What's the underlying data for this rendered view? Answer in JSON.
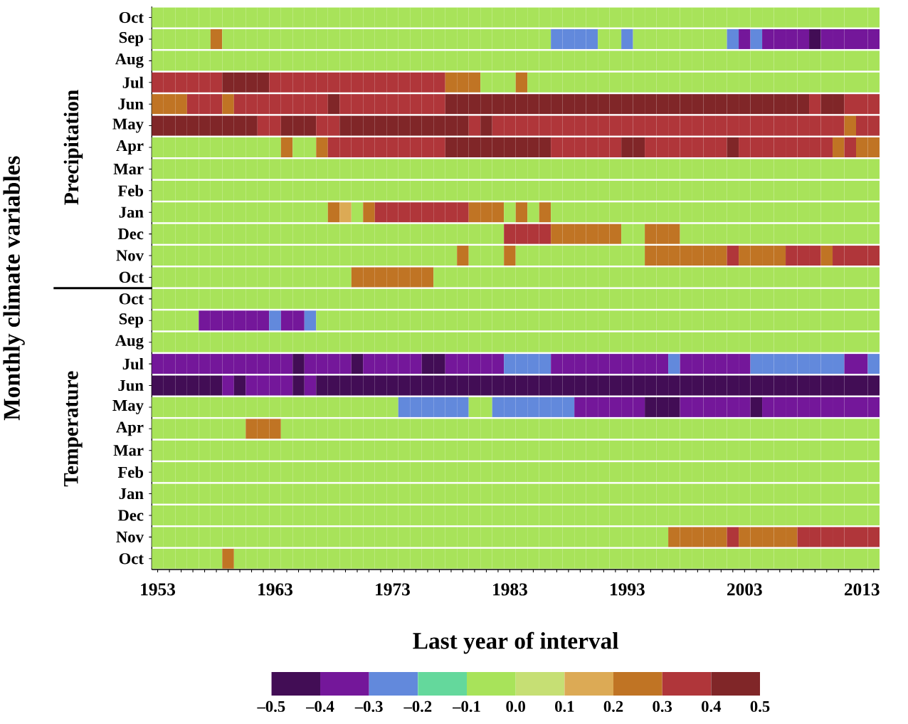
{
  "chart_data": {
    "type": "heatmap",
    "xlabel": "Last year of interval",
    "ylabel": "Monthly climate variables",
    "annotations": [
      "Precipitation",
      "Temperature"
    ],
    "categories": [
      "1953",
      null,
      null,
      null,
      null,
      null,
      null,
      null,
      null,
      null,
      "1963",
      null,
      null,
      null,
      null,
      null,
      null,
      null,
      null,
      null,
      "1973",
      null,
      null,
      null,
      null,
      null,
      null,
      null,
      null,
      null,
      "1983",
      null,
      null,
      null,
      null,
      null,
      null,
      null,
      null,
      null,
      "1993",
      null,
      null,
      null,
      null,
      null,
      null,
      null,
      null,
      null,
      "2003",
      null,
      null,
      null,
      null,
      null,
      null,
      null,
      null,
      null,
      "2013",
      null
    ],
    "y_categories": [
      "Oct",
      "Sep",
      "Aug",
      "Jul",
      "Jun",
      "May",
      "Apr",
      "Mar",
      "Feb",
      "Jan",
      "Dec",
      "Nov",
      "Oct",
      "Oct",
      "Sep",
      "Aug",
      "Jul",
      "Jun",
      "May",
      "Apr",
      "Mar",
      "Feb",
      "Jan",
      "Dec",
      "Nov",
      "Oct"
    ],
    "clim": [
      -0.5,
      0.5
    ],
    "cticks": [
      {
        "value": -0.5,
        "label": "–0.5"
      },
      {
        "value": -0.4,
        "label": "–0.4"
      },
      {
        "value": -0.3,
        "label": "–0.3"
      },
      {
        "value": -0.2,
        "label": "–0.2"
      },
      {
        "value": -0.1,
        "label": "–0.1"
      },
      {
        "value": 0,
        "label": "0.0"
      },
      0.1,
      0.2,
      0.3,
      0.4,
      0.5
    ],
    "cells": [
      [
        -0.05,
        -0.05,
        -0.05,
        -0.05,
        -0.05,
        -0.05,
        -0.05,
        -0.05,
        -0.05,
        -0.05,
        -0.05,
        -0.05,
        -0.05,
        -0.05,
        -0.05,
        -0.05,
        -0.05,
        -0.05,
        -0.05,
        -0.05,
        -0.05,
        -0.05,
        -0.05,
        -0.05,
        -0.05,
        -0.05,
        -0.05,
        -0.05,
        -0.05,
        -0.05,
        -0.05,
        -0.05,
        -0.05,
        -0.05,
        -0.05,
        -0.05,
        -0.05,
        -0.05,
        -0.05,
        -0.05,
        -0.05,
        -0.05,
        -0.05,
        -0.05,
        -0.05,
        -0.05,
        -0.05,
        -0.05,
        -0.05,
        -0.05,
        -0.05,
        -0.05,
        -0.05,
        -0.05,
        -0.05,
        -0.05,
        -0.05,
        -0.05,
        -0.05,
        -0.05,
        -0.05,
        -0.05
      ],
      [
        -0.05,
        -0.05,
        -0.05,
        -0.05,
        -0.05,
        0.25,
        -0.05,
        -0.05,
        -0.05,
        -0.05,
        -0.05,
        -0.05,
        -0.05,
        -0.05,
        -0.05,
        -0.05,
        -0.05,
        -0.05,
        -0.05,
        -0.05,
        -0.05,
        -0.05,
        -0.05,
        -0.05,
        -0.05,
        -0.05,
        -0.05,
        -0.05,
        -0.05,
        -0.05,
        -0.05,
        -0.05,
        -0.05,
        -0.05,
        -0.25,
        -0.25,
        -0.25,
        -0.25,
        -0.05,
        -0.05,
        -0.25,
        -0.05,
        -0.05,
        -0.05,
        -0.05,
        -0.05,
        -0.05,
        -0.05,
        -0.05,
        -0.25,
        -0.35,
        -0.25,
        -0.35,
        -0.35,
        -0.35,
        -0.35,
        -0.45,
        -0.35,
        -0.35,
        -0.35,
        -0.35,
        -0.35
      ],
      [
        -0.05,
        -0.05,
        -0.05,
        -0.05,
        -0.05,
        -0.05,
        -0.05,
        -0.05,
        -0.05,
        -0.05,
        -0.05,
        -0.05,
        -0.05,
        -0.05,
        -0.05,
        -0.05,
        -0.05,
        -0.05,
        -0.05,
        -0.05,
        -0.05,
        -0.05,
        -0.05,
        -0.05,
        -0.05,
        -0.05,
        -0.05,
        -0.05,
        -0.05,
        -0.05,
        -0.05,
        -0.05,
        -0.05,
        -0.05,
        -0.05,
        -0.05,
        -0.05,
        -0.05,
        -0.05,
        -0.05,
        -0.05,
        -0.05,
        -0.05,
        -0.05,
        -0.05,
        -0.05,
        -0.05,
        -0.05,
        -0.05,
        -0.05,
        -0.05,
        -0.05,
        -0.05,
        -0.05,
        -0.05,
        -0.05,
        -0.05,
        -0.05,
        -0.05,
        -0.05,
        -0.05,
        -0.05
      ],
      [
        0.35,
        0.35,
        0.35,
        0.35,
        0.35,
        0.35,
        0.45,
        0.45,
        0.45,
        0.45,
        0.35,
        0.35,
        0.35,
        0.35,
        0.35,
        0.35,
        0.35,
        0.35,
        0.35,
        0.35,
        0.35,
        0.35,
        0.35,
        0.35,
        0.35,
        0.25,
        0.25,
        0.25,
        -0.05,
        -0.05,
        -0.05,
        0.25,
        -0.05,
        -0.05,
        -0.05,
        -0.05,
        -0.05,
        -0.05,
        -0.05,
        -0.05,
        -0.05,
        -0.05,
        -0.05,
        -0.05,
        -0.05,
        -0.05,
        -0.05,
        -0.05,
        -0.05,
        -0.05,
        -0.05,
        -0.05,
        -0.05,
        -0.05,
        -0.05,
        -0.05,
        -0.05,
        -0.05,
        -0.05,
        -0.05,
        -0.05,
        -0.05
      ],
      [
        0.25,
        0.25,
        0.25,
        0.35,
        0.35,
        0.35,
        0.25,
        0.35,
        0.35,
        0.35,
        0.35,
        0.35,
        0.35,
        0.35,
        0.35,
        0.45,
        0.35,
        0.35,
        0.35,
        0.35,
        0.35,
        0.35,
        0.35,
        0.35,
        0.35,
        0.45,
        0.45,
        0.45,
        0.45,
        0.45,
        0.45,
        0.45,
        0.45,
        0.45,
        0.45,
        0.45,
        0.45,
        0.45,
        0.45,
        0.45,
        0.45,
        0.45,
        0.45,
        0.45,
        0.45,
        0.45,
        0.45,
        0.45,
        0.45,
        0.45,
        0.45,
        0.45,
        0.45,
        0.45,
        0.45,
        0.45,
        0.35,
        0.45,
        0.45,
        0.35,
        0.35,
        0.35
      ],
      [
        0.45,
        0.45,
        0.45,
        0.45,
        0.45,
        0.45,
        0.45,
        0.45,
        0.45,
        0.35,
        0.35,
        0.45,
        0.45,
        0.45,
        0.35,
        0.35,
        0.45,
        0.45,
        0.45,
        0.45,
        0.45,
        0.45,
        0.45,
        0.45,
        0.45,
        0.45,
        0.45,
        0.35,
        0.45,
        0.35,
        0.35,
        0.35,
        0.35,
        0.35,
        0.35,
        0.35,
        0.35,
        0.35,
        0.35,
        0.35,
        0.35,
        0.35,
        0.35,
        0.35,
        0.35,
        0.35,
        0.35,
        0.35,
        0.35,
        0.35,
        0.35,
        0.35,
        0.35,
        0.35,
        0.35,
        0.35,
        0.35,
        0.35,
        0.35,
        0.25,
        0.35,
        0.35
      ],
      [
        -0.05,
        -0.05,
        -0.05,
        -0.05,
        -0.05,
        -0.05,
        -0.05,
        -0.05,
        -0.05,
        -0.05,
        -0.05,
        0.25,
        -0.05,
        -0.05,
        0.25,
        0.35,
        0.35,
        0.35,
        0.35,
        0.35,
        0.35,
        0.35,
        0.35,
        0.35,
        0.35,
        0.45,
        0.45,
        0.45,
        0.45,
        0.45,
        0.45,
        0.45,
        0.45,
        0.45,
        0.35,
        0.35,
        0.35,
        0.35,
        0.35,
        0.35,
        0.45,
        0.45,
        0.35,
        0.35,
        0.35,
        0.35,
        0.35,
        0.35,
        0.35,
        0.45,
        0.35,
        0.35,
        0.35,
        0.35,
        0.35,
        0.35,
        0.35,
        0.35,
        0.25,
        0.35,
        0.25,
        0.25
      ],
      [
        -0.05,
        -0.05,
        -0.05,
        -0.05,
        -0.05,
        -0.05,
        -0.05,
        -0.05,
        -0.05,
        -0.05,
        -0.05,
        -0.05,
        -0.05,
        -0.05,
        -0.05,
        -0.05,
        -0.05,
        -0.05,
        -0.05,
        -0.05,
        -0.05,
        -0.05,
        -0.05,
        -0.05,
        -0.05,
        -0.05,
        -0.05,
        -0.05,
        -0.05,
        -0.05,
        -0.05,
        -0.05,
        -0.05,
        -0.05,
        -0.05,
        -0.05,
        -0.05,
        -0.05,
        -0.05,
        -0.05,
        -0.05,
        -0.05,
        -0.05,
        -0.05,
        -0.05,
        -0.05,
        -0.05,
        -0.05,
        -0.05,
        -0.05,
        -0.05,
        -0.05,
        -0.05,
        -0.05,
        -0.05,
        -0.05,
        -0.05,
        -0.05,
        -0.05,
        -0.05,
        -0.05,
        -0.05
      ],
      [
        -0.05,
        -0.05,
        -0.05,
        -0.05,
        -0.05,
        -0.05,
        -0.05,
        -0.05,
        -0.05,
        -0.05,
        -0.05,
        -0.05,
        -0.05,
        -0.05,
        -0.05,
        -0.05,
        -0.05,
        -0.05,
        -0.05,
        -0.05,
        -0.05,
        -0.05,
        -0.05,
        -0.05,
        -0.05,
        -0.05,
        -0.05,
        -0.05,
        -0.05,
        -0.05,
        -0.05,
        -0.05,
        -0.05,
        -0.05,
        -0.05,
        -0.05,
        -0.05,
        -0.05,
        -0.05,
        -0.05,
        -0.05,
        -0.05,
        -0.05,
        -0.05,
        -0.05,
        -0.05,
        -0.05,
        -0.05,
        -0.05,
        -0.05,
        -0.05,
        -0.05,
        -0.05,
        -0.05,
        -0.05,
        -0.05,
        -0.05,
        -0.05,
        -0.05,
        -0.05,
        -0.05,
        -0.05
      ],
      [
        -0.05,
        -0.05,
        -0.05,
        -0.05,
        -0.05,
        -0.05,
        -0.05,
        -0.05,
        -0.05,
        -0.05,
        -0.05,
        -0.05,
        -0.05,
        -0.05,
        -0.05,
        0.25,
        0.15,
        -0.05,
        0.25,
        0.35,
        0.35,
        0.35,
        0.35,
        0.35,
        0.35,
        0.35,
        0.35,
        0.25,
        0.25,
        0.25,
        -0.05,
        0.25,
        -0.05,
        0.25,
        -0.05,
        -0.05,
        -0.05,
        -0.05,
        -0.05,
        -0.05,
        -0.05,
        -0.05,
        -0.05,
        -0.05,
        -0.05,
        -0.05,
        -0.05,
        -0.05,
        -0.05,
        -0.05,
        -0.05,
        -0.05,
        -0.05,
        -0.05,
        -0.05,
        -0.05,
        -0.05,
        -0.05,
        -0.05,
        -0.05,
        -0.05,
        -0.05
      ],
      [
        -0.05,
        -0.05,
        -0.05,
        -0.05,
        -0.05,
        -0.05,
        -0.05,
        -0.05,
        -0.05,
        -0.05,
        -0.05,
        -0.05,
        -0.05,
        -0.05,
        -0.05,
        -0.05,
        -0.05,
        -0.05,
        -0.05,
        -0.05,
        -0.05,
        -0.05,
        -0.05,
        -0.05,
        -0.05,
        -0.05,
        -0.05,
        -0.05,
        -0.05,
        -0.05,
        0.35,
        0.35,
        0.35,
        0.35,
        0.25,
        0.25,
        0.25,
        0.25,
        0.25,
        0.25,
        -0.05,
        -0.05,
        0.25,
        0.25,
        0.25,
        -0.05,
        -0.05,
        -0.05,
        -0.05,
        -0.05,
        -0.05,
        -0.05,
        -0.05,
        -0.05,
        -0.05,
        -0.05,
        -0.05,
        -0.05,
        -0.05,
        -0.05,
        -0.05,
        -0.05
      ],
      [
        -0.05,
        -0.05,
        -0.05,
        -0.05,
        -0.05,
        -0.05,
        -0.05,
        -0.05,
        -0.05,
        -0.05,
        -0.05,
        -0.05,
        -0.05,
        -0.05,
        -0.05,
        -0.05,
        -0.05,
        -0.05,
        -0.05,
        -0.05,
        -0.05,
        -0.05,
        -0.05,
        -0.05,
        -0.05,
        -0.05,
        0.25,
        -0.05,
        -0.05,
        -0.05,
        0.25,
        -0.05,
        -0.05,
        -0.05,
        -0.05,
        -0.05,
        -0.05,
        -0.05,
        -0.05,
        -0.05,
        -0.05,
        -0.05,
        0.25,
        0.25,
        0.25,
        0.25,
        0.25,
        0.25,
        0.25,
        0.35,
        0.25,
        0.25,
        0.25,
        0.25,
        0.35,
        0.35,
        0.35,
        0.25,
        0.35,
        0.35,
        0.35,
        0.35
      ],
      [
        -0.05,
        -0.05,
        -0.05,
        -0.05,
        -0.05,
        -0.05,
        -0.05,
        -0.05,
        -0.05,
        -0.05,
        -0.05,
        -0.05,
        -0.05,
        -0.05,
        -0.05,
        -0.05,
        -0.05,
        0.25,
        0.25,
        0.25,
        0.25,
        0.25,
        0.25,
        0.25,
        -0.05,
        -0.05,
        -0.05,
        -0.05,
        -0.05,
        -0.05,
        -0.05,
        -0.05,
        -0.05,
        -0.05,
        -0.05,
        -0.05,
        -0.05,
        -0.05,
        -0.05,
        -0.05,
        -0.05,
        -0.05,
        -0.05,
        -0.05,
        -0.05,
        -0.05,
        -0.05,
        -0.05,
        -0.05,
        -0.05,
        -0.05,
        -0.05,
        -0.05,
        -0.05,
        -0.05,
        -0.05,
        -0.05,
        -0.05,
        -0.05,
        -0.05,
        -0.05,
        -0.05
      ],
      [
        -0.05,
        -0.05,
        -0.05,
        -0.05,
        -0.05,
        -0.05,
        -0.05,
        -0.05,
        -0.05,
        -0.05,
        -0.05,
        -0.05,
        -0.05,
        -0.05,
        -0.05,
        -0.05,
        -0.05,
        -0.05,
        -0.05,
        -0.05,
        -0.05,
        -0.05,
        -0.05,
        -0.05,
        -0.05,
        -0.05,
        -0.05,
        -0.05,
        -0.05,
        -0.05,
        -0.05,
        -0.05,
        -0.05,
        -0.05,
        -0.05,
        -0.05,
        -0.05,
        -0.05,
        -0.05,
        -0.05,
        -0.05,
        -0.05,
        -0.05,
        -0.05,
        -0.05,
        -0.05,
        -0.05,
        -0.05,
        -0.05,
        -0.05,
        -0.05,
        -0.05,
        -0.05,
        -0.05,
        -0.05,
        -0.05,
        -0.05,
        -0.05,
        -0.05,
        -0.05,
        -0.05,
        -0.05
      ],
      [
        -0.05,
        -0.05,
        -0.05,
        -0.05,
        -0.35,
        -0.35,
        -0.35,
        -0.35,
        -0.35,
        -0.35,
        -0.25,
        -0.35,
        -0.35,
        -0.25,
        -0.05,
        -0.05,
        -0.05,
        -0.05,
        -0.05,
        -0.05,
        -0.05,
        -0.05,
        -0.05,
        -0.05,
        -0.05,
        -0.05,
        -0.05,
        -0.05,
        -0.05,
        -0.05,
        -0.05,
        -0.05,
        -0.05,
        -0.05,
        -0.05,
        -0.05,
        -0.05,
        -0.05,
        -0.05,
        -0.05,
        -0.05,
        -0.05,
        -0.05,
        -0.05,
        -0.05,
        -0.05,
        -0.05,
        -0.05,
        -0.05,
        -0.05,
        -0.05,
        -0.05,
        -0.05,
        -0.05,
        -0.05,
        -0.05,
        -0.05,
        -0.05,
        -0.05,
        -0.05,
        -0.05,
        -0.05
      ],
      [
        -0.05,
        -0.05,
        -0.05,
        -0.05,
        -0.05,
        -0.05,
        -0.05,
        -0.05,
        -0.05,
        -0.05,
        -0.05,
        -0.05,
        -0.05,
        -0.05,
        -0.05,
        -0.05,
        -0.05,
        -0.05,
        -0.05,
        -0.05,
        -0.05,
        -0.05,
        -0.05,
        -0.05,
        -0.05,
        -0.05,
        -0.05,
        -0.05,
        -0.05,
        -0.05,
        -0.05,
        -0.05,
        -0.05,
        -0.05,
        -0.05,
        -0.05,
        -0.05,
        -0.05,
        -0.05,
        -0.05,
        -0.05,
        -0.05,
        -0.05,
        -0.05,
        -0.05,
        -0.05,
        -0.05,
        -0.05,
        -0.05,
        -0.05,
        -0.05,
        -0.05,
        -0.05,
        -0.05,
        -0.05,
        -0.05,
        -0.05,
        -0.05,
        -0.05,
        -0.05,
        -0.05,
        -0.05
      ],
      [
        -0.35,
        -0.35,
        -0.35,
        -0.35,
        -0.35,
        -0.35,
        -0.35,
        -0.35,
        -0.35,
        -0.35,
        -0.35,
        -0.35,
        -0.45,
        -0.35,
        -0.35,
        -0.35,
        -0.35,
        -0.45,
        -0.35,
        -0.35,
        -0.35,
        -0.35,
        -0.35,
        -0.45,
        -0.45,
        -0.35,
        -0.35,
        -0.35,
        -0.35,
        -0.35,
        -0.25,
        -0.25,
        -0.25,
        -0.25,
        -0.35,
        -0.35,
        -0.35,
        -0.35,
        -0.35,
        -0.35,
        -0.35,
        -0.35,
        -0.35,
        -0.35,
        -0.25,
        -0.35,
        -0.35,
        -0.35,
        -0.35,
        -0.35,
        -0.35,
        -0.25,
        -0.25,
        -0.25,
        -0.25,
        -0.25,
        -0.25,
        -0.25,
        -0.25,
        -0.35,
        -0.35,
        -0.25
      ],
      [
        -0.45,
        -0.45,
        -0.45,
        -0.45,
        -0.45,
        -0.45,
        -0.35,
        -0.45,
        -0.35,
        -0.35,
        -0.35,
        -0.35,
        -0.45,
        -0.35,
        -0.45,
        -0.45,
        -0.45,
        -0.45,
        -0.45,
        -0.45,
        -0.45,
        -0.45,
        -0.45,
        -0.45,
        -0.45,
        -0.45,
        -0.45,
        -0.45,
        -0.45,
        -0.45,
        -0.45,
        -0.45,
        -0.45,
        -0.45,
        -0.45,
        -0.45,
        -0.45,
        -0.45,
        -0.45,
        -0.45,
        -0.45,
        -0.45,
        -0.45,
        -0.45,
        -0.45,
        -0.45,
        -0.45,
        -0.45,
        -0.45,
        -0.45,
        -0.45,
        -0.45,
        -0.45,
        -0.45,
        -0.45,
        -0.45,
        -0.45,
        -0.45,
        -0.45,
        -0.45,
        -0.45,
        -0.45
      ],
      [
        -0.05,
        -0.05,
        -0.05,
        -0.05,
        -0.05,
        -0.05,
        -0.05,
        -0.05,
        -0.05,
        -0.05,
        -0.05,
        -0.05,
        -0.05,
        -0.05,
        -0.05,
        -0.05,
        -0.05,
        -0.05,
        -0.05,
        -0.05,
        -0.05,
        -0.25,
        -0.25,
        -0.25,
        -0.25,
        -0.25,
        -0.25,
        -0.05,
        -0.05,
        -0.25,
        -0.25,
        -0.25,
        -0.25,
        -0.25,
        -0.25,
        -0.25,
        -0.35,
        -0.35,
        -0.35,
        -0.35,
        -0.35,
        -0.35,
        -0.45,
        -0.45,
        -0.45,
        -0.35,
        -0.35,
        -0.35,
        -0.35,
        -0.35,
        -0.35,
        -0.45,
        -0.35,
        -0.35,
        -0.35,
        -0.35,
        -0.35,
        -0.35,
        -0.35,
        -0.35,
        -0.35,
        -0.35
      ],
      [
        -0.05,
        -0.05,
        -0.05,
        -0.05,
        -0.05,
        -0.05,
        -0.05,
        -0.05,
        0.25,
        0.25,
        0.25,
        -0.05,
        -0.05,
        -0.05,
        -0.05,
        -0.05,
        -0.05,
        -0.05,
        -0.05,
        -0.05,
        -0.05,
        -0.05,
        -0.05,
        -0.05,
        -0.05,
        -0.05,
        -0.05,
        -0.05,
        -0.05,
        -0.05,
        -0.05,
        -0.05,
        -0.05,
        -0.05,
        -0.05,
        -0.05,
        -0.05,
        -0.05,
        -0.05,
        -0.05,
        -0.05,
        -0.05,
        -0.05,
        -0.05,
        -0.05,
        -0.05,
        -0.05,
        -0.05,
        -0.05,
        -0.05,
        -0.05,
        -0.05,
        -0.05,
        -0.05,
        -0.05,
        -0.05,
        -0.05,
        -0.05,
        -0.05,
        -0.05,
        -0.05,
        -0.05
      ],
      [
        -0.05,
        -0.05,
        -0.05,
        -0.05,
        -0.05,
        -0.05,
        -0.05,
        -0.05,
        -0.05,
        -0.05,
        -0.05,
        -0.05,
        -0.05,
        -0.05,
        -0.05,
        -0.05,
        -0.05,
        -0.05,
        -0.05,
        -0.05,
        -0.05,
        -0.05,
        -0.05,
        -0.05,
        -0.05,
        -0.05,
        -0.05,
        -0.05,
        -0.05,
        -0.05,
        -0.05,
        -0.05,
        -0.05,
        -0.05,
        -0.05,
        -0.05,
        -0.05,
        -0.05,
        -0.05,
        -0.05,
        -0.05,
        -0.05,
        -0.05,
        -0.05,
        -0.05,
        -0.05,
        -0.05,
        -0.05,
        -0.05,
        -0.05,
        -0.05,
        -0.05,
        -0.05,
        -0.05,
        -0.05,
        -0.05,
        -0.05,
        -0.05,
        -0.05,
        -0.05,
        -0.05,
        -0.05
      ],
      [
        -0.05,
        -0.05,
        -0.05,
        -0.05,
        -0.05,
        -0.05,
        -0.05,
        -0.05,
        -0.05,
        -0.05,
        -0.05,
        -0.05,
        -0.05,
        -0.05,
        -0.05,
        -0.05,
        -0.05,
        -0.05,
        -0.05,
        -0.05,
        -0.05,
        -0.05,
        -0.05,
        -0.05,
        -0.05,
        -0.05,
        -0.05,
        -0.05,
        -0.05,
        -0.05,
        -0.05,
        -0.05,
        -0.05,
        -0.05,
        -0.05,
        -0.05,
        -0.05,
        -0.05,
        -0.05,
        -0.05,
        -0.05,
        -0.05,
        -0.05,
        -0.05,
        -0.05,
        -0.05,
        -0.05,
        -0.05,
        -0.05,
        -0.05,
        -0.05,
        -0.05,
        -0.05,
        -0.05,
        -0.05,
        -0.05,
        -0.05,
        -0.05,
        -0.05,
        -0.05,
        -0.05,
        -0.05
      ],
      [
        -0.05,
        -0.05,
        -0.05,
        -0.05,
        -0.05,
        -0.05,
        -0.05,
        -0.05,
        -0.05,
        -0.05,
        -0.05,
        -0.05,
        -0.05,
        -0.05,
        -0.05,
        -0.05,
        -0.05,
        -0.05,
        -0.05,
        -0.05,
        -0.05,
        -0.05,
        -0.05,
        -0.05,
        -0.05,
        -0.05,
        -0.05,
        -0.05,
        -0.05,
        -0.05,
        -0.05,
        -0.05,
        -0.05,
        -0.05,
        -0.05,
        -0.05,
        -0.05,
        -0.05,
        -0.05,
        -0.05,
        -0.05,
        -0.05,
        -0.05,
        -0.05,
        -0.05,
        -0.05,
        -0.05,
        -0.05,
        -0.05,
        -0.05,
        -0.05,
        -0.05,
        -0.05,
        -0.05,
        -0.05,
        -0.05,
        -0.05,
        -0.05,
        -0.05,
        -0.05,
        -0.05,
        -0.05
      ],
      [
        -0.05,
        -0.05,
        -0.05,
        -0.05,
        -0.05,
        -0.05,
        -0.05,
        -0.05,
        -0.05,
        -0.05,
        -0.05,
        -0.05,
        -0.05,
        -0.05,
        -0.05,
        -0.05,
        -0.05,
        -0.05,
        -0.05,
        -0.05,
        -0.05,
        -0.05,
        -0.05,
        -0.05,
        -0.05,
        -0.05,
        -0.05,
        -0.05,
        -0.05,
        -0.05,
        -0.05,
        -0.05,
        -0.05,
        -0.05,
        -0.05,
        -0.05,
        -0.05,
        -0.05,
        -0.05,
        -0.05,
        -0.05,
        -0.05,
        -0.05,
        -0.05,
        -0.05,
        -0.05,
        -0.05,
        -0.05,
        -0.05,
        -0.05,
        -0.05,
        -0.05,
        -0.05,
        -0.05,
        -0.05,
        -0.05,
        -0.05,
        -0.05,
        -0.05,
        -0.05,
        -0.05,
        -0.05
      ],
      [
        -0.05,
        -0.05,
        -0.05,
        -0.05,
        -0.05,
        -0.05,
        -0.05,
        -0.05,
        -0.05,
        -0.05,
        -0.05,
        -0.05,
        -0.05,
        -0.05,
        -0.05,
        -0.05,
        -0.05,
        -0.05,
        -0.05,
        -0.05,
        -0.05,
        -0.05,
        -0.05,
        -0.05,
        -0.05,
        -0.05,
        -0.05,
        -0.05,
        -0.05,
        -0.05,
        -0.05,
        -0.05,
        -0.05,
        -0.05,
        -0.05,
        -0.05,
        -0.05,
        -0.05,
        -0.05,
        -0.05,
        -0.05,
        -0.05,
        -0.05,
        -0.05,
        0.25,
        0.25,
        0.25,
        0.25,
        0.25,
        0.35,
        0.25,
        0.25,
        0.25,
        0.25,
        0.25,
        0.35,
        0.35,
        0.35,
        0.35,
        0.35,
        0.35,
        0.35
      ],
      [
        -0.05,
        -0.05,
        -0.05,
        -0.05,
        -0.05,
        -0.05,
        0.25,
        -0.05,
        -0.05,
        -0.05,
        -0.05,
        -0.05,
        -0.05,
        -0.05,
        -0.05,
        -0.05,
        -0.05,
        -0.05,
        -0.05,
        -0.05,
        -0.05,
        -0.05,
        -0.05,
        -0.05,
        -0.05,
        -0.05,
        -0.05,
        -0.05,
        -0.05,
        -0.05,
        -0.05,
        -0.05,
        -0.05,
        -0.05,
        -0.05,
        -0.05,
        -0.05,
        -0.05,
        -0.05,
        -0.05,
        -0.05,
        -0.05,
        -0.05,
        -0.05,
        -0.05,
        -0.05,
        -0.05,
        -0.05,
        -0.05,
        -0.05,
        -0.05,
        -0.05,
        -0.05,
        -0.05,
        -0.05,
        -0.05,
        -0.05,
        -0.05,
        -0.05,
        -0.05,
        -0.05,
        -0.05
      ]
    ]
  }
}
